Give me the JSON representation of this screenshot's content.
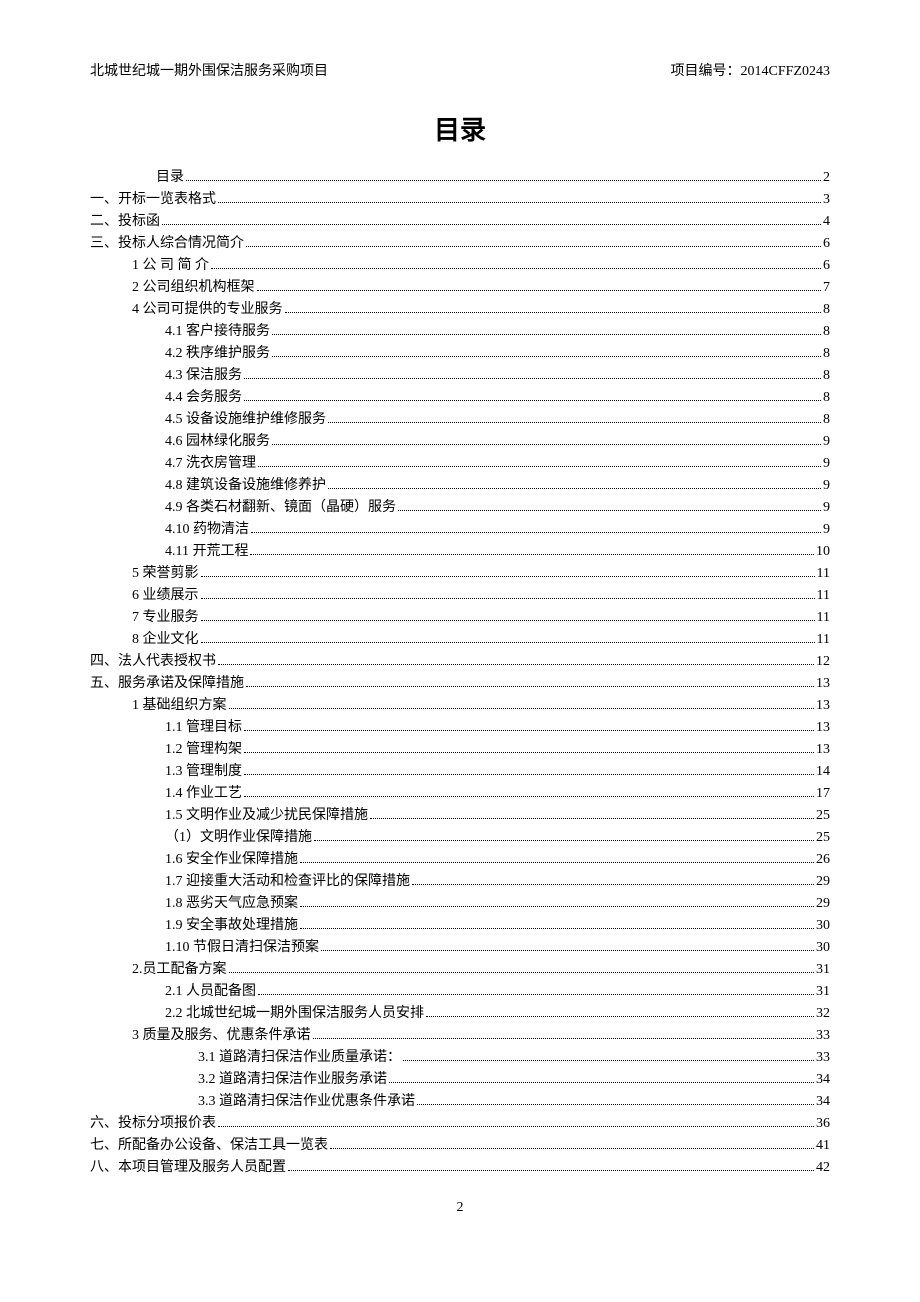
{
  "header": {
    "left": "北城世纪城一期外围保洁服务采购项目",
    "right": "项目编号：2014CFFZ0243"
  },
  "title": "目录",
  "pageNumber": "2",
  "toc": [
    {
      "label": "目录",
      "page": "2",
      "indent": "home"
    },
    {
      "label": "一、开标一览表格式",
      "page": "3",
      "indent": 0
    },
    {
      "label": "二、投标函",
      "page": "4",
      "indent": 0
    },
    {
      "label": "三、投标人综合情况简介",
      "page": "6",
      "indent": 0
    },
    {
      "label": "1 公  司  简  介",
      "page": "6",
      "indent": 1
    },
    {
      "label": "2 公司组织机构框架",
      "page": "7",
      "indent": 1
    },
    {
      "label": "4 公司可提供的专业服务",
      "page": "8",
      "indent": 1
    },
    {
      "label": "4.1 客户接待服务",
      "page": "8",
      "indent": 2
    },
    {
      "label": "4.2 秩序维护服务",
      "page": "8",
      "indent": 2
    },
    {
      "label": "4.3 保洁服务",
      "page": "8",
      "indent": 2
    },
    {
      "label": "4.4 会务服务",
      "page": "8",
      "indent": 2
    },
    {
      "label": "4.5 设备设施维护维修服务",
      "page": "8",
      "indent": 2
    },
    {
      "label": "4.6 园林绿化服务",
      "page": "9",
      "indent": 2
    },
    {
      "label": "4.7 洗衣房管理",
      "page": "9",
      "indent": 2
    },
    {
      "label": "4.8 建筑设备设施维修养护",
      "page": "9",
      "indent": 2
    },
    {
      "label": "4.9 各类石材翻新、镜面（晶硬）服务",
      "page": "9",
      "indent": 2
    },
    {
      "label": "4.10 药物清洁",
      "page": "9",
      "indent": 2
    },
    {
      "label": "4.11 开荒工程",
      "page": "10",
      "indent": 2
    },
    {
      "label": "5 荣誉剪影",
      "page": "11",
      "indent": 1
    },
    {
      "label": "6 业绩展示",
      "page": "11",
      "indent": 1
    },
    {
      "label": "7 专业服务",
      "page": "11",
      "indent": 1
    },
    {
      "label": "8 企业文化",
      "page": "11",
      "indent": 1
    },
    {
      "label": "四、法人代表授权书",
      "page": "12",
      "indent": 0
    },
    {
      "label": "五、服务承诺及保障措施",
      "page": "13",
      "indent": 0
    },
    {
      "label": "1 基础组织方案",
      "page": "13",
      "indent": 1
    },
    {
      "label": "1.1 管理目标",
      "page": "13",
      "indent": 2
    },
    {
      "label": "1.2 管理构架",
      "page": "13",
      "indent": 2
    },
    {
      "label": "1.3 管理制度",
      "page": "14",
      "indent": 2
    },
    {
      "label": "1.4 作业工艺",
      "page": "17",
      "indent": 2
    },
    {
      "label": "1.5 文明作业及减少扰民保障措施",
      "page": "25",
      "indent": 2
    },
    {
      "label": "（1）文明作业保障措施",
      "page": "25",
      "indent": 2
    },
    {
      "label": "1.6 安全作业保障措施",
      "page": "26",
      "indent": 2
    },
    {
      "label": "1.7 迎接重大活动和检查评比的保障措施",
      "page": "29",
      "indent": 2
    },
    {
      "label": "1.8 恶劣天气应急预案",
      "page": "29",
      "indent": 2
    },
    {
      "label": "1.9 安全事故处理措施",
      "page": "30",
      "indent": 2
    },
    {
      "label": "1.10 节假日清扫保洁预案",
      "page": "30",
      "indent": 2
    },
    {
      "label": "2.员工配备方案",
      "page": "31",
      "indent": 1
    },
    {
      "label": "2.1 人员配备图",
      "page": "31",
      "indent": 2
    },
    {
      "label": "2.2 北城世纪城一期外围保洁服务人员安排",
      "page": "32",
      "indent": 2
    },
    {
      "label": "3 质量及服务、优惠条件承诺",
      "page": "33",
      "indent": 1
    },
    {
      "label": "3.1 道路清扫保洁作业质量承诺：",
      "page": "33",
      "indent": 3
    },
    {
      "label": "3.2 道路清扫保洁作业服务承诺",
      "page": "34",
      "indent": 3
    },
    {
      "label": "3.3 道路清扫保洁作业优惠条件承诺",
      "page": "34",
      "indent": 3
    },
    {
      "label": "六、投标分项报价表",
      "page": "36",
      "indent": 0
    },
    {
      "label": "七、所配备办公设备、保洁工具一览表",
      "page": "41",
      "indent": 0
    },
    {
      "label": "八、本项目管理及服务人员配置",
      "page": "42",
      "indent": 0
    }
  ]
}
